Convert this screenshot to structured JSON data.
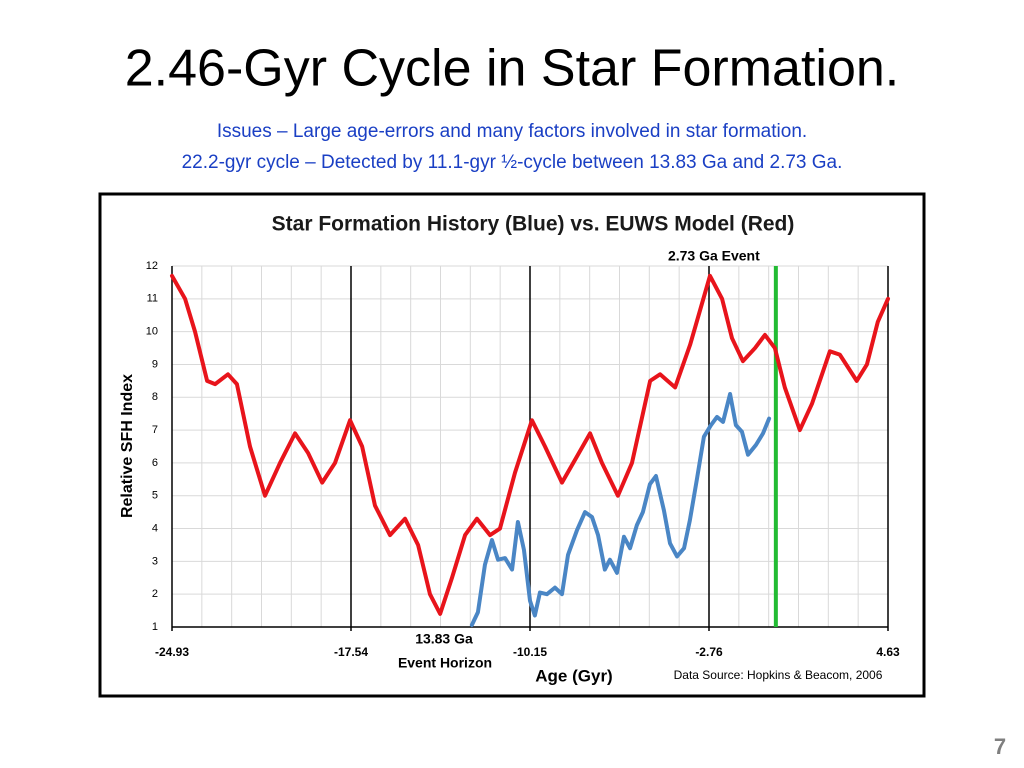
{
  "slide": {
    "title": "2.46-Gyr Cycle in Star Formation.",
    "subtitle": [
      "Issues – Large age-errors and many factors involved in star formation.",
      "22.2-gyr cycle – Detected by 11.1-gyr ½-cycle between 13.83 Ga and 2.73 Ga."
    ],
    "page_number": "7"
  },
  "chart_data": {
    "type": "line",
    "title": "Star Formation History (Blue) vs. EUWS Model (Red)",
    "x_label": "Age (Gyr)",
    "y_label": "Relative SFH Index",
    "source": "Data Source:  Hopkins & Beacom, 2006",
    "xlim": [
      -24.93,
      4.63
    ],
    "xticks": [
      -24.93,
      -17.54,
      -10.15,
      -2.76,
      4.63
    ],
    "ylim": [
      1,
      12
    ],
    "yticks": [
      1,
      2,
      3,
      4,
      5,
      6,
      7,
      8,
      9,
      10,
      11,
      12
    ],
    "grid": true,
    "event_line": {
      "x": 0,
      "color": "#22bb33",
      "label": "2.73 Ga Event"
    },
    "annotations": [
      "13.83 Ga",
      "Event Horizon"
    ],
    "series": [
      {
        "color": "#e8141b",
        "x": [
          -24.93,
          -24.39,
          -23.98,
          -23.48,
          -23.15,
          -22.62,
          -22.25,
          -21.71,
          -21.09,
          -20.47,
          -19.85,
          -19.31,
          -18.73,
          -18.2,
          -17.58,
          -17.08,
          -16.55,
          -15.93,
          -15.31,
          -14.77,
          -14.28,
          -13.86,
          -13.37,
          -12.83,
          -12.34,
          -11.8,
          -11.39,
          -10.77,
          -10.07,
          -9.53,
          -8.83,
          -8.21,
          -7.67,
          -7.18,
          -6.52,
          -5.94,
          -5.19,
          -4.78,
          -4.16,
          -3.54,
          -2.72,
          -2.22,
          -1.81,
          -1.36,
          -0.86,
          -0.45,
          -0.04,
          0.37,
          0.99,
          1.49,
          2.23,
          2.64,
          3.34,
          3.76,
          4.21,
          4.63
        ],
        "values": [
          11.7,
          11.0,
          10.0,
          8.5,
          8.4,
          8.7,
          8.4,
          6.5,
          5.0,
          6.0,
          6.9,
          6.3,
          5.4,
          6.0,
          7.3,
          6.5,
          4.7,
          3.8,
          4.3,
          3.5,
          2.0,
          1.4,
          2.5,
          3.8,
          4.3,
          3.8,
          4.0,
          5.7,
          7.3,
          6.5,
          5.4,
          6.2,
          6.9,
          6.0,
          5.0,
          6.0,
          8.5,
          8.7,
          8.3,
          9.6,
          11.7,
          11.0,
          9.8,
          9.1,
          9.5,
          9.9,
          9.5,
          8.3,
          7.0,
          7.8,
          9.4,
          9.3,
          8.5,
          9.0,
          10.3,
          11.0
        ]
      },
      {
        "color": "#4a86c5",
        "x": [
          -12.55,
          -12.3,
          -12.01,
          -11.72,
          -11.47,
          -11.18,
          -10.89,
          -10.65,
          -10.4,
          -10.15,
          -9.95,
          -9.74,
          -9.45,
          -9.12,
          -8.83,
          -8.58,
          -8.21,
          -7.88,
          -7.59,
          -7.34,
          -7.06,
          -6.85,
          -6.56,
          -6.27,
          -6.02,
          -5.74,
          -5.49,
          -5.2,
          -4.95,
          -4.62,
          -4.37,
          -4.08,
          -3.79,
          -3.55,
          -3.26,
          -2.97,
          -2.68,
          -2.43,
          -2.18,
          -1.89,
          -1.65,
          -1.4,
          -1.15,
          -0.82,
          -0.53,
          -0.28
        ],
        "values": [
          1.06,
          1.45,
          2.9,
          3.65,
          3.05,
          3.1,
          2.75,
          4.2,
          3.35,
          1.8,
          1.35,
          2.05,
          2.0,
          2.2,
          2.0,
          3.2,
          3.95,
          4.5,
          4.35,
          3.8,
          2.75,
          3.05,
          2.65,
          3.75,
          3.4,
          4.1,
          4.5,
          5.35,
          5.6,
          4.55,
          3.55,
          3.15,
          3.4,
          4.25,
          5.5,
          6.8,
          7.15,
          7.4,
          7.25,
          8.1,
          7.15,
          6.95,
          6.25,
          6.55,
          6.9,
          7.35
        ]
      }
    ]
  }
}
